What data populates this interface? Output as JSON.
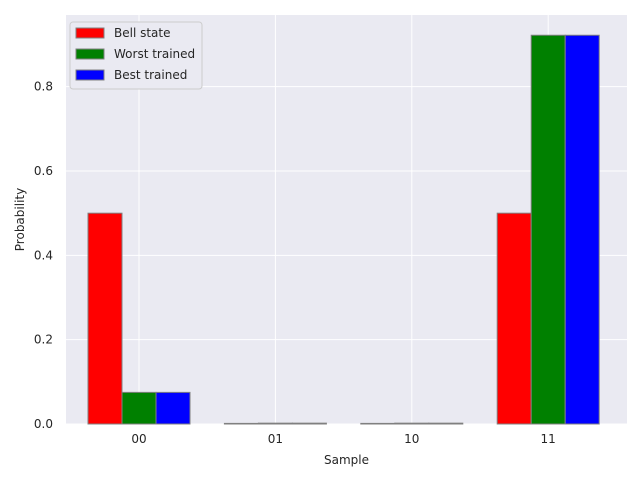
{
  "chart_data": {
    "type": "bar",
    "title": "",
    "xlabel": "Sample",
    "ylabel": "Probability",
    "categories": [
      "00",
      "01",
      "10",
      "11"
    ],
    "ylim": [
      0,
      0.97
    ],
    "yticks": [
      0.0,
      0.2,
      0.4,
      0.6,
      0.8
    ],
    "ytick_labels": [
      "0.0",
      "0.2",
      "0.4",
      "0.6",
      "0.8"
    ],
    "grid": true,
    "legend_position": "top-left",
    "series": [
      {
        "name": "Bell state",
        "color": "#ff0000",
        "values": [
          0.5,
          0.001,
          0.001,
          0.5
        ]
      },
      {
        "name": "Worst trained",
        "color": "#008000",
        "values": [
          0.075,
          0.002,
          0.002,
          0.922
        ]
      },
      {
        "name": "Best trained",
        "color": "#0000ff",
        "values": [
          0.075,
          0.002,
          0.002,
          0.922
        ]
      }
    ],
    "background_color": "#eaeaf2",
    "grid_color": "#ffffff",
    "bar_edge_color": "#808080"
  }
}
